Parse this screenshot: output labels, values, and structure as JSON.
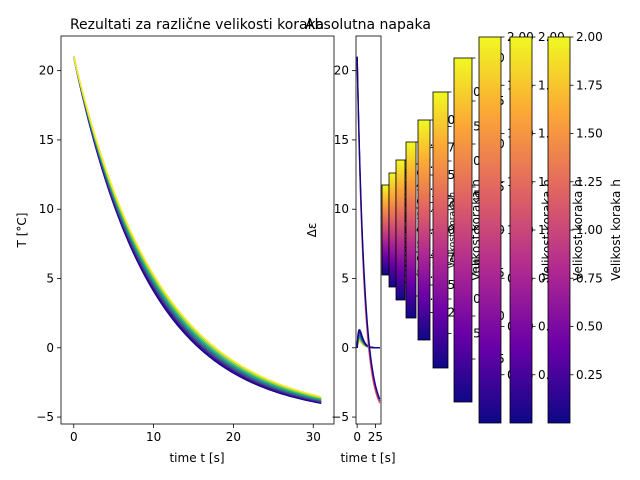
{
  "chart_data": [
    {
      "type": "line",
      "title": "Rezultati za različne velikosti koraka",
      "xlabel": "time t [s]",
      "ylabel": "T [°C]",
      "xlim": [
        -1.6,
        32.6
      ],
      "ylim": [
        -5.5,
        22.5
      ],
      "xticks": [
        0,
        10,
        20,
        30
      ],
      "yticks": [
        -5,
        0,
        5,
        10,
        15,
        20
      ],
      "grid": false,
      "colormap": [
        "#0d0887",
        "#6a00a8",
        "#b12a90",
        "#e16462",
        "#fca636",
        "#f0f921"
      ],
      "series_colors": [
        "#0d0887",
        "#46039f",
        "#443983",
        "#31688e",
        "#21918c",
        "#35b779",
        "#90d743",
        "#fde725"
      ],
      "model": {
        "T0": 21,
        "T_inf": -5,
        "rate_min": 0.105,
        "rate_max": 0.093,
        "t_max": 31
      }
    },
    {
      "type": "line",
      "title": "Absolutna napaka",
      "xlabel": "time t [s]",
      "ylabel": "Δε",
      "xlim": [
        -1.6,
        32.6
      ],
      "ylim": [
        -5.5,
        22.5
      ],
      "xticks": [
        0,
        25
      ],
      "yticks": [
        -5,
        0,
        5,
        10,
        15,
        20
      ],
      "grid": false
    }
  ],
  "colorbar": {
    "label": "Velikost koraka h",
    "colormap": "plasma",
    "range": [
      0,
      2.0
    ],
    "tick_values": [
      0.25,
      0.5,
      0.75,
      1.0,
      1.25,
      1.5,
      1.75,
      2.0
    ],
    "tick_labels": [
      "0.25",
      "0.50",
      "0.75",
      "1.00",
      "1.25",
      "1.50",
      "1.75",
      "2.00"
    ],
    "count": 10
  }
}
